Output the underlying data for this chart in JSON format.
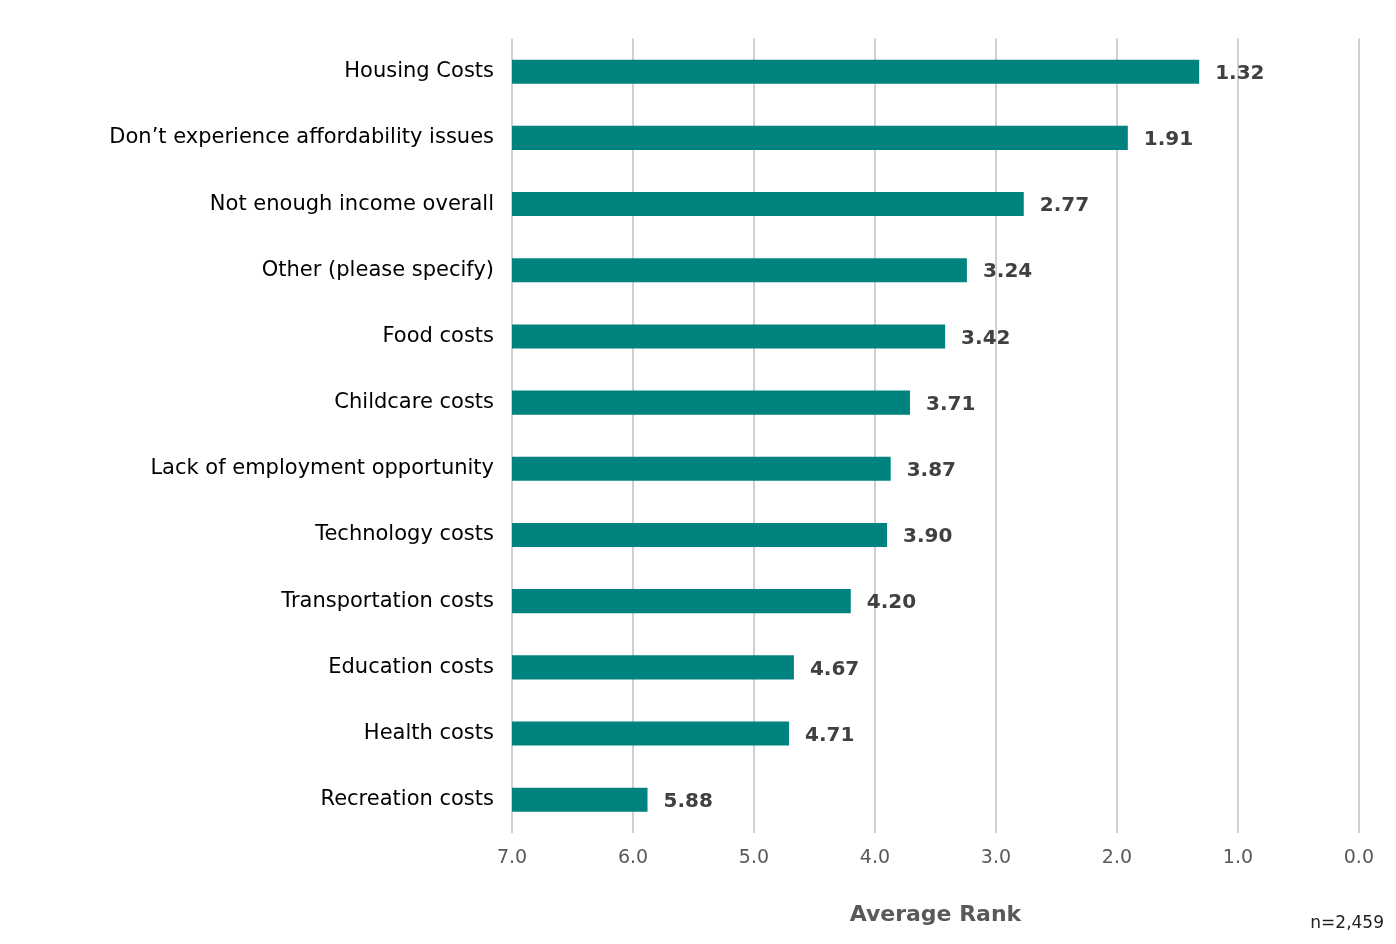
{
  "chart_data": {
    "type": "bar",
    "orientation": "horizontal",
    "xlabel": "Average Rank",
    "categories": [
      "Housing Costs",
      "Don’t experience affordability issues",
      "Not enough income overall",
      "Other (please specify)",
      "Food costs",
      "Childcare costs",
      "Lack of employment opportunity",
      "Technology costs",
      "Transportation costs",
      "Education costs",
      "Health costs",
      "Recreation costs"
    ],
    "base": [
      7,
      7,
      7,
      7,
      7,
      7,
      7,
      7,
      7,
      7,
      7,
      7
    ],
    "values": [
      -5.68,
      -5.09,
      -4.23,
      -3.76,
      -3.58,
      -3.29,
      -3.13,
      -3.1,
      -2.8,
      -2.33,
      -2.29,
      -1.12
    ],
    "value_labels": [
      "1.32",
      "1.91",
      "2.77",
      "3.24",
      "3.42",
      "3.71",
      "3.87",
      "3.90",
      "4.20",
      "4.67",
      "4.71",
      "5.88"
    ],
    "color": "#00827f",
    "xlim": [
      7,
      0
    ],
    "xticks": [
      {
        "value": 7,
        "label": "7.0"
      },
      {
        "value": 6,
        "label": "6.0"
      },
      {
        "value": 5,
        "label": "5.0"
      },
      {
        "value": 4,
        "label": "4.0"
      },
      {
        "value": 3,
        "label": "3.0"
      },
      {
        "value": 2,
        "label": "2.0"
      },
      {
        "value": 1,
        "label": "1.0"
      },
      {
        "value": 0,
        "label": "0.0"
      }
    ],
    "grid": "x",
    "legend": false,
    "annotations": [
      "n=2,459"
    ]
  }
}
